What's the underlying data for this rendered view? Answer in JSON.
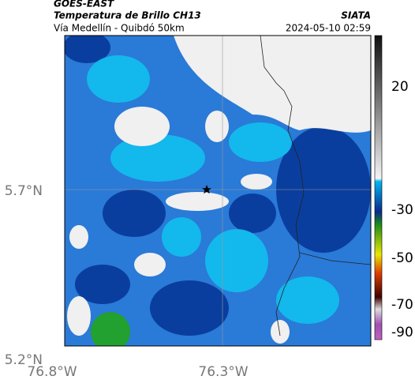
{
  "header": {
    "source": "GOES-EAST",
    "title": "Temperatura de Brillo CH13",
    "subtitle": "Vía Medellín - Quibdó 50km",
    "brand": "SIATA",
    "timestamp": "2024-05-10 02:59"
  },
  "axes": {
    "lat_labels": [
      "5.7°N",
      "5.2°N"
    ],
    "lon_labels": [
      "76.8°W",
      "76.3°W"
    ]
  },
  "colorbar": {
    "tick_labels": [
      "20",
      "-30",
      "-50",
      "-70",
      "-90"
    ]
  }
}
